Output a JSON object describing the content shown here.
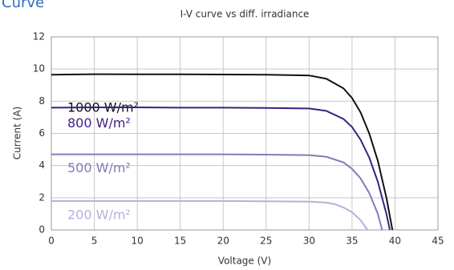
{
  "header": "Curve",
  "chart_data": {
    "type": "line",
    "title": "I-V curve vs diff. irradiance",
    "x_label": "Voltage (V)",
    "y_label": "Current (A)",
    "xlim": [
      0,
      45
    ],
    "xticks": [
      0,
      5,
      10,
      15,
      20,
      25,
      30,
      35,
      40,
      45
    ],
    "ylim": [
      0,
      12
    ],
    "yticks": [
      0,
      2,
      4,
      6,
      8,
      10,
      12
    ],
    "grid": true,
    "series": [
      {
        "name": "1000 W/m²",
        "color": "#111111",
        "x": [
          0,
          5,
          10,
          15,
          20,
          25,
          30,
          32,
          34,
          35,
          36,
          37,
          38,
          39,
          39.7
        ],
        "values": [
          9.65,
          9.68,
          9.67,
          9.67,
          9.66,
          9.65,
          9.6,
          9.4,
          8.8,
          8.2,
          7.3,
          6.0,
          4.3,
          2.0,
          0
        ]
      },
      {
        "name": "800 W/m²",
        "color": "#3d1f82",
        "x": [
          0,
          5,
          10,
          15,
          20,
          25,
          30,
          32,
          34,
          35,
          36,
          37,
          38,
          39,
          39.4
        ],
        "values": [
          7.6,
          7.62,
          7.62,
          7.6,
          7.6,
          7.58,
          7.55,
          7.4,
          6.9,
          6.4,
          5.6,
          4.5,
          3.0,
          1.0,
          0
        ]
      },
      {
        "name": "500 W/m²",
        "color": "#8878b8",
        "x": [
          0,
          5,
          10,
          15,
          20,
          25,
          30,
          32,
          34,
          35,
          36,
          37,
          38,
          38.5
        ],
        "values": [
          4.7,
          4.7,
          4.7,
          4.7,
          4.7,
          4.68,
          4.65,
          4.55,
          4.2,
          3.8,
          3.2,
          2.3,
          1.0,
          0
        ]
      },
      {
        "name": "200 W/m²",
        "color": "#b9aed8",
        "x": [
          0,
          5,
          10,
          15,
          20,
          25,
          30,
          32,
          33,
          34,
          35,
          36,
          36.8
        ],
        "values": [
          1.8,
          1.8,
          1.8,
          1.8,
          1.8,
          1.78,
          1.76,
          1.7,
          1.6,
          1.4,
          1.1,
          0.6,
          0
        ]
      }
    ]
  }
}
